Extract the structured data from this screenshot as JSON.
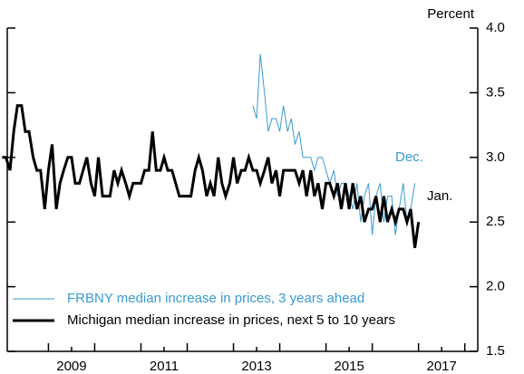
{
  "chart_data": {
    "type": "line",
    "y_axis_label": "Percent",
    "xlim": [
      2008.11,
      2018.28
    ],
    "xticks": [
      {
        "value": 2009.5,
        "label": "2009"
      },
      {
        "value": 2011.5,
        "label": "2011"
      },
      {
        "value": 2013.5,
        "label": "2013"
      },
      {
        "value": 2015.5,
        "label": "2015"
      },
      {
        "value": 2017.5,
        "label": "2017"
      }
    ],
    "xminorticks": [
      2009,
      2010,
      2011,
      2012,
      2013,
      2014,
      2015,
      2016,
      2017,
      2018
    ],
    "ylim": [
      1.5,
      4.0
    ],
    "yticks": [
      1.5,
      {
        "value": 2.0,
        "label": "2.0"
      },
      2.5,
      {
        "value": 3.0,
        "label": "3.0"
      },
      3.5,
      {
        "value": 4.0,
        "label": "4.0"
      }
    ],
    "legend": "bottom-left",
    "annotations": [
      "Dec.",
      "Jan."
    ],
    "series": [
      {
        "name": "FRBNY median increase in prices, 3 years ahead",
        "color": "#3a9ad0",
        "width": 1,
        "x": [
          2013.42,
          2013.5,
          2013.58,
          2013.67,
          2013.75,
          2013.83,
          2013.92,
          2014.0,
          2014.08,
          2014.17,
          2014.25,
          2014.33,
          2014.42,
          2014.5,
          2014.58,
          2014.67,
          2014.75,
          2014.83,
          2014.92,
          2015.0,
          2015.08,
          2015.17,
          2015.25,
          2015.33,
          2015.42,
          2015.5,
          2015.58,
          2015.67,
          2015.75,
          2015.83,
          2015.92,
          2016.0,
          2016.08,
          2016.17,
          2016.25,
          2016.33,
          2016.42,
          2016.5,
          2016.58,
          2016.67,
          2016.75,
          2016.83,
          2016.92
        ],
        "values": [
          3.4,
          3.3,
          3.8,
          3.5,
          3.2,
          3.3,
          3.3,
          3.2,
          3.4,
          3.2,
          3.3,
          3.1,
          3.2,
          3.0,
          3.0,
          3.0,
          2.9,
          3.0,
          3.0,
          2.9,
          2.8,
          2.9,
          2.7,
          2.8,
          2.8,
          2.7,
          2.6,
          2.8,
          2.5,
          2.7,
          2.8,
          2.4,
          2.7,
          2.8,
          2.5,
          2.7,
          2.7,
          2.4,
          2.6,
          2.8,
          2.5,
          2.6,
          2.8
        ]
      },
      {
        "name": "Michigan median increase in prices, next 5 to 10 years",
        "color": "#000000",
        "width": 3,
        "x": [
          2008.0,
          2008.08,
          2008.17,
          2008.25,
          2008.33,
          2008.42,
          2008.5,
          2008.58,
          2008.67,
          2008.75,
          2008.83,
          2008.92,
          2009.0,
          2009.08,
          2009.17,
          2009.25,
          2009.33,
          2009.42,
          2009.5,
          2009.58,
          2009.67,
          2009.75,
          2009.83,
          2009.92,
          2010.0,
          2010.08,
          2010.17,
          2010.25,
          2010.33,
          2010.42,
          2010.5,
          2010.58,
          2010.67,
          2010.75,
          2010.83,
          2010.92,
          2011.0,
          2011.08,
          2011.17,
          2011.25,
          2011.33,
          2011.42,
          2011.5,
          2011.58,
          2011.67,
          2011.75,
          2011.83,
          2011.92,
          2012.0,
          2012.08,
          2012.17,
          2012.25,
          2012.33,
          2012.42,
          2012.5,
          2012.58,
          2012.67,
          2012.75,
          2012.83,
          2012.92,
          2013.0,
          2013.08,
          2013.17,
          2013.25,
          2013.33,
          2013.42,
          2013.5,
          2013.58,
          2013.67,
          2013.75,
          2013.83,
          2013.92,
          2014.0,
          2014.08,
          2014.17,
          2014.25,
          2014.33,
          2014.42,
          2014.5,
          2014.58,
          2014.67,
          2014.75,
          2014.83,
          2014.92,
          2015.0,
          2015.08,
          2015.17,
          2015.25,
          2015.33,
          2015.42,
          2015.5,
          2015.58,
          2015.67,
          2015.75,
          2015.83,
          2015.92,
          2016.0,
          2016.08,
          2016.17,
          2016.25,
          2016.33,
          2016.42,
          2016.5,
          2016.58,
          2016.67,
          2016.75,
          2016.83,
          2016.92,
          2017.0
        ],
        "values": [
          3.0,
          3.0,
          2.9,
          3.2,
          3.4,
          3.4,
          3.2,
          3.2,
          3.0,
          2.9,
          2.9,
          2.6,
          2.9,
          3.1,
          2.6,
          2.8,
          2.9,
          3.0,
          3.0,
          2.8,
          2.8,
          2.9,
          3.0,
          2.8,
          2.7,
          3.0,
          2.7,
          2.7,
          2.7,
          2.9,
          2.8,
          2.9,
          2.8,
          2.7,
          2.8,
          2.8,
          2.8,
          2.9,
          2.9,
          3.2,
          2.9,
          2.9,
          3.0,
          2.9,
          2.9,
          2.8,
          2.7,
          2.7,
          2.7,
          2.7,
          2.9,
          3.0,
          2.9,
          2.7,
          2.8,
          2.7,
          3.0,
          2.8,
          2.7,
          2.8,
          3.0,
          2.8,
          2.9,
          2.9,
          3.0,
          2.9,
          2.9,
          2.8,
          2.9,
          3.0,
          2.8,
          2.9,
          2.7,
          2.9,
          2.9,
          2.9,
          2.9,
          2.8,
          2.9,
          2.7,
          2.9,
          2.7,
          2.8,
          2.6,
          2.8,
          2.8,
          2.7,
          2.8,
          2.6,
          2.8,
          2.6,
          2.8,
          2.6,
          2.7,
          2.5,
          2.6,
          2.6,
          2.7,
          2.5,
          2.7,
          2.5,
          2.6,
          2.5,
          2.6,
          2.6,
          2.5,
          2.6,
          2.3,
          2.5
        ]
      }
    ]
  }
}
